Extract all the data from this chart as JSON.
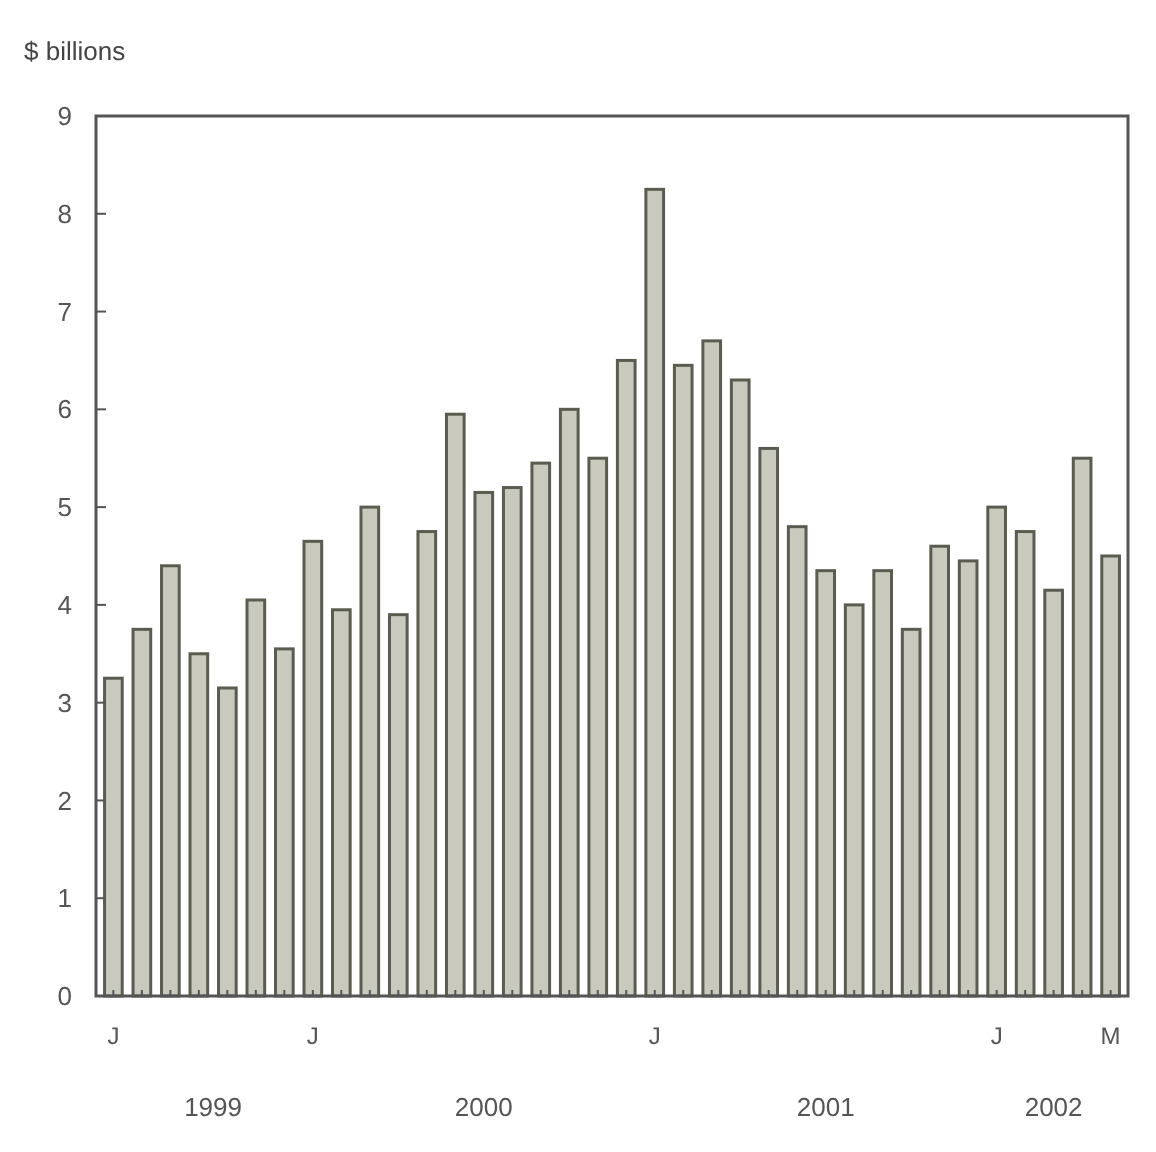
{
  "chart_data": {
    "type": "bar",
    "ylabel": "$ billions",
    "categories": [
      "J",
      null,
      null,
      null,
      null,
      null,
      null,
      "J",
      null,
      null,
      null,
      null,
      null,
      null,
      null,
      null,
      null,
      null,
      null,
      "J",
      null,
      null,
      null,
      null,
      null,
      null,
      null,
      null,
      null,
      null,
      null,
      "J",
      null,
      null,
      null,
      "M"
    ],
    "series": [
      {
        "color": "#c9cabd",
        "values": [
          3.25,
          3.75,
          4.4,
          3.5,
          3.15,
          4.05,
          3.55,
          4.65,
          3.95,
          5.0,
          3.9,
          4.75,
          5.95,
          5.15,
          5.2,
          5.45,
          6.0,
          5.5,
          6.5,
          8.25,
          6.45,
          6.7,
          6.3,
          5.6,
          4.8,
          4.35,
          4.0,
          4.35,
          3.75,
          4.6,
          4.45,
          5.0,
          4.75,
          4.15,
          5.5,
          4.5
        ]
      }
    ],
    "ylim": [
      0,
      9
    ],
    "yticks": [
      0,
      1,
      2,
      3,
      4,
      5,
      6,
      7,
      8,
      9
    ],
    "grid": false,
    "annotations": [
      "1999",
      "2000",
      "2001",
      "2002"
    ]
  }
}
